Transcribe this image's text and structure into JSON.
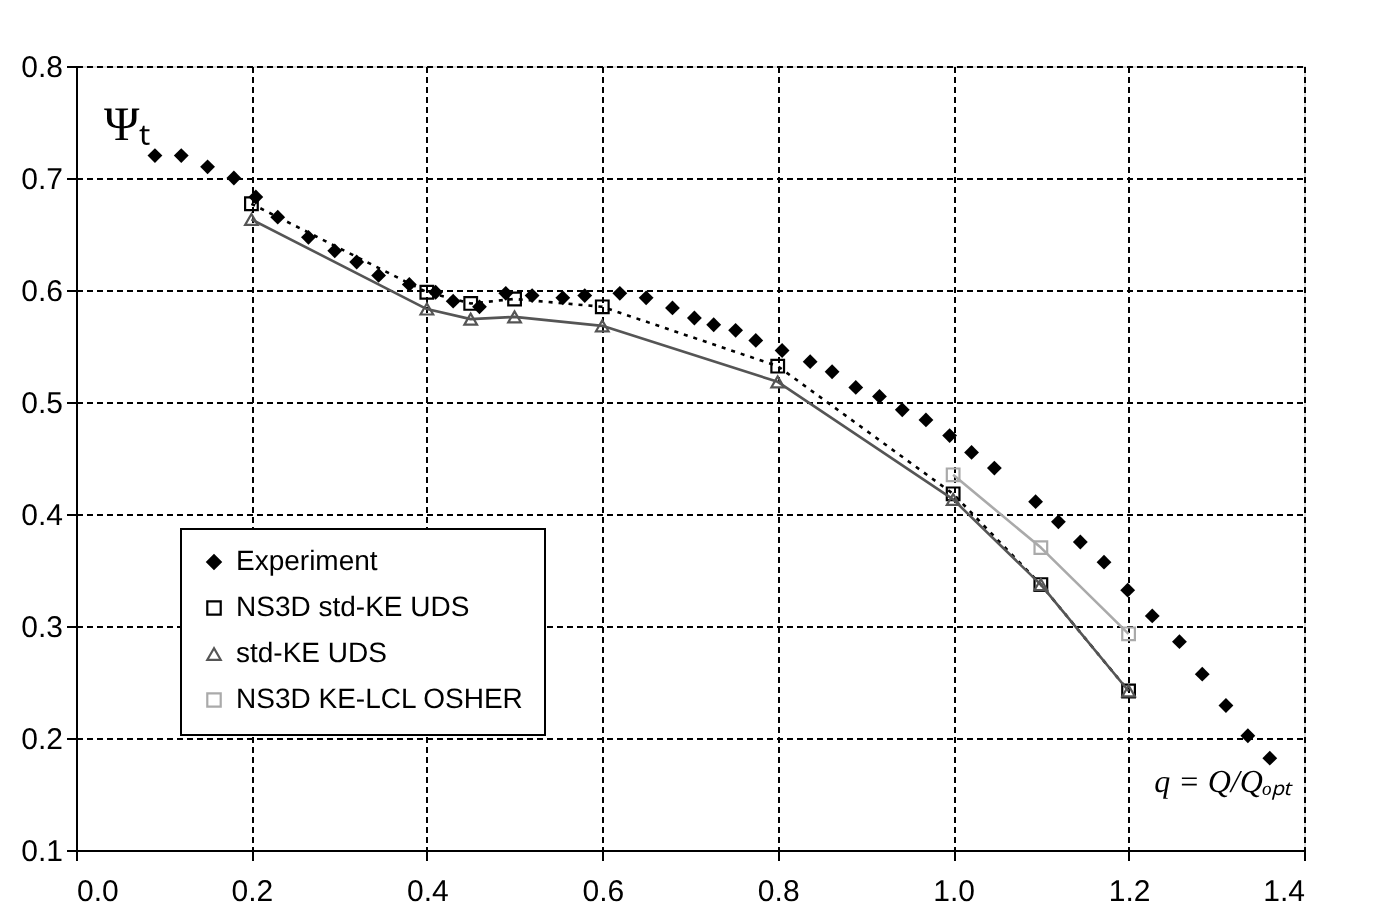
{
  "chart_data": {
    "type": "line",
    "xlabel": "q = Q/Qₒₚₜ",
    "ylabel": "Ψₜ",
    "xlim": [
      0,
      1.4
    ],
    "xticks": [
      {
        "value": 0,
        "label": "0.0"
      },
      0.2,
      0.4,
      0.6,
      0.8,
      {
        "value": 1,
        "label": "1.0"
      },
      1.2,
      1.4
    ],
    "ylim": [
      0.1,
      0.8
    ],
    "yticks": [
      0.1,
      0.2,
      0.3,
      0.4,
      0.5,
      0.6,
      0.7,
      0.8
    ],
    "grid": true,
    "legend": "bottom left",
    "series": [
      {
        "name": "Experiment",
        "type": "scatter",
        "marker": "diamond",
        "color": "#000000",
        "x": [
          0.09,
          0.12,
          0.15,
          0.18,
          0.205,
          0.23,
          0.265,
          0.295,
          0.32,
          0.345,
          0.38,
          0.41,
          0.43,
          0.46,
          0.49,
          0.52,
          0.555,
          0.58,
          0.62,
          0.65,
          0.68,
          0.705,
          0.727,
          0.752,
          0.775,
          0.805,
          0.837,
          0.862,
          0.889,
          0.916,
          0.942,
          0.969,
          0.996,
          1.021,
          1.047,
          1.094,
          1.12,
          1.145,
          1.172,
          1.199,
          1.227,
          1.258,
          1.284,
          1.311,
          1.336,
          1.361
        ],
        "values": [
          0.72,
          0.72,
          0.71,
          0.7,
          0.683,
          0.665,
          0.647,
          0.635,
          0.625,
          0.613,
          0.605,
          0.598,
          0.59,
          0.585,
          0.597,
          0.595,
          0.593,
          0.595,
          0.597,
          0.593,
          0.584,
          0.575,
          0.569,
          0.564,
          0.555,
          0.546,
          0.536,
          0.527,
          0.513,
          0.505,
          0.493,
          0.484,
          0.47,
          0.455,
          0.441,
          0.411,
          0.393,
          0.375,
          0.357,
          0.332,
          0.309,
          0.286,
          0.257,
          0.229,
          0.202,
          0.182
        ]
      },
      {
        "name": "NS3D std-KE UDS",
        "marker": "square",
        "line_style": "dotted",
        "color": "#000000",
        "x": [
          0.2,
          0.4,
          0.45,
          0.5,
          0.6,
          0.8,
          1.0,
          1.1,
          1.2
        ],
        "values": [
          0.677,
          0.598,
          0.588,
          0.592,
          0.585,
          0.532,
          0.418,
          0.337,
          0.242
        ]
      },
      {
        "name": "std-KE UDS",
        "marker": "triangle",
        "line_style": "solid",
        "color": "#555555",
        "x": [
          0.2,
          0.4,
          0.45,
          0.5,
          0.6,
          0.8,
          1.0,
          1.1,
          1.2
        ],
        "values": [
          0.663,
          0.583,
          0.574,
          0.576,
          0.568,
          0.518,
          0.413,
          0.337,
          0.242
        ]
      },
      {
        "name": "NS3D KE-LCL OSHER",
        "marker": "square",
        "line_style": "solid",
        "color": "#aaaaaa",
        "x": [
          1.0,
          1.1,
          1.2
        ],
        "values": [
          0.435,
          0.37,
          0.293
        ]
      }
    ]
  }
}
